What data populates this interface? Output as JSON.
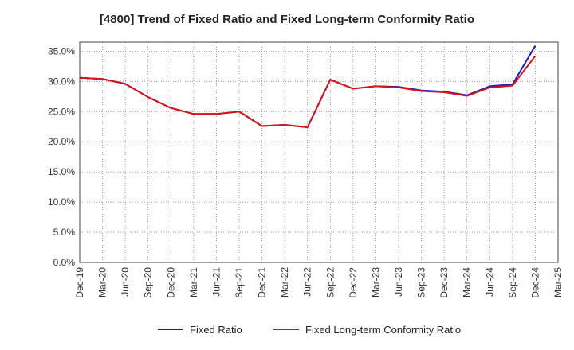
{
  "chart_data": {
    "type": "line",
    "title": "[4800]  Trend of Fixed Ratio and Fixed Long-term Conformity Ratio",
    "xlabel": "",
    "ylabel": "",
    "ylim": [
      0,
      36.5
    ],
    "y_ticks": [
      "0.0%",
      "5.0%",
      "10.0%",
      "15.0%",
      "20.0%",
      "25.0%",
      "30.0%",
      "35.0%"
    ],
    "x_ticks": [
      "Dec-19",
      "Mar-20",
      "Jun-20",
      "Sep-20",
      "Dec-20",
      "Mar-21",
      "Jun-21",
      "Sep-21",
      "Dec-21",
      "Mar-22",
      "Jun-22",
      "Sep-22",
      "Dec-22",
      "Mar-23",
      "Jun-23",
      "Sep-23",
      "Dec-23",
      "Mar-24",
      "Jun-24",
      "Sep-24",
      "Dec-24",
      "Mar-25"
    ],
    "grid": true,
    "legend_position": "bottom",
    "categories": [
      "Dec-19",
      "Mar-20",
      "Jun-20",
      "Sep-20",
      "Dec-20",
      "Mar-21",
      "Jun-21",
      "Sep-21",
      "Dec-21",
      "Mar-22",
      "Jun-22",
      "Sep-22",
      "Dec-22",
      "Mar-23",
      "Jun-23",
      "Sep-23",
      "Dec-23",
      "Mar-24",
      "Jun-24",
      "Sep-24",
      "Dec-24"
    ],
    "series": [
      {
        "name": "Fixed Ratio",
        "color": "#1a1acc",
        "values": [
          30.6,
          30.4,
          29.6,
          27.4,
          25.6,
          24.6,
          24.6,
          25.0,
          22.6,
          22.8,
          22.4,
          30.3,
          28.8,
          29.2,
          29.1,
          28.5,
          28.3,
          27.7,
          29.2,
          29.5,
          35.9
        ]
      },
      {
        "name": "Fixed Long-term Conformity Ratio",
        "color": "#dd1111",
        "values": [
          30.6,
          30.4,
          29.6,
          27.4,
          25.6,
          24.6,
          24.6,
          25.0,
          22.6,
          22.8,
          22.4,
          30.3,
          28.8,
          29.2,
          29.0,
          28.4,
          28.2,
          27.6,
          29.0,
          29.3,
          34.2
        ]
      }
    ]
  }
}
